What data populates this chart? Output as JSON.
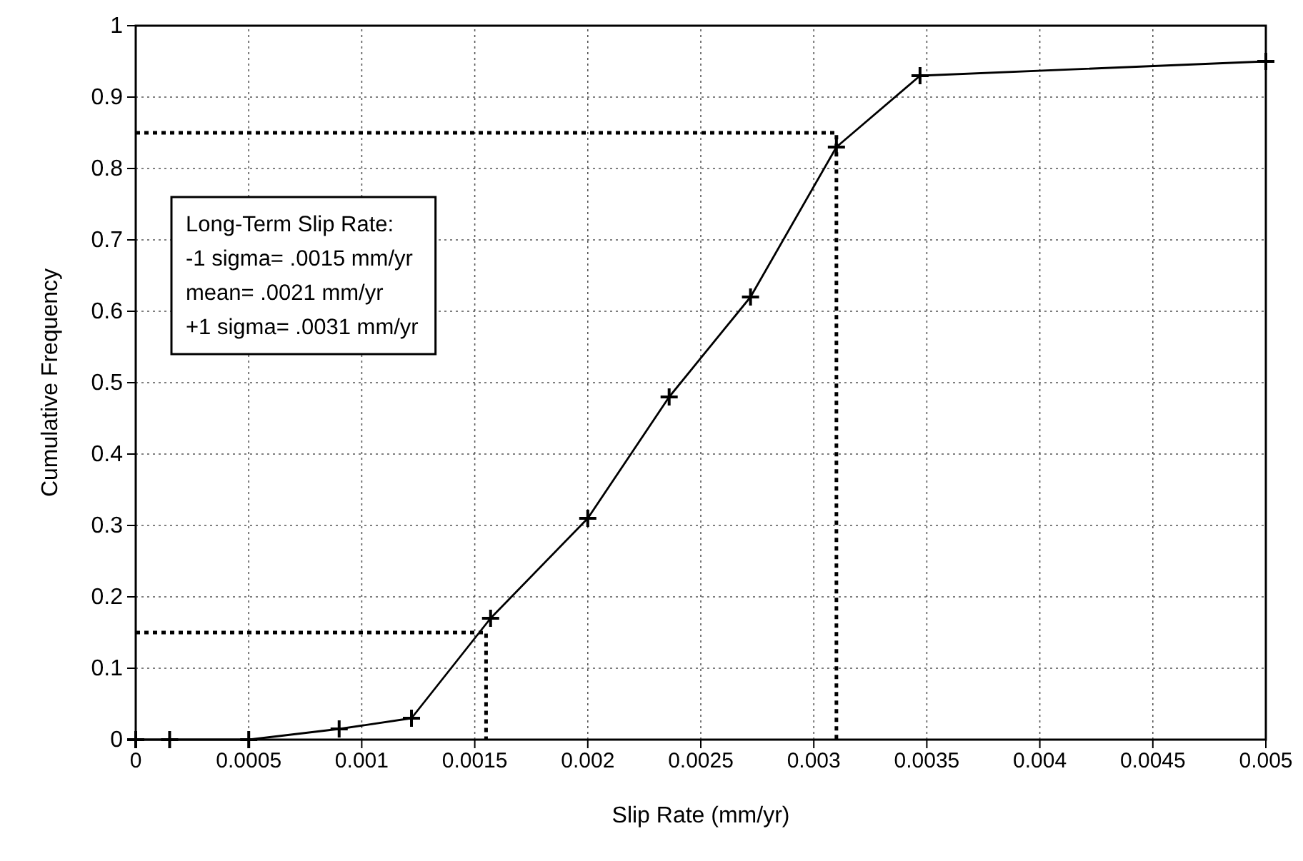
{
  "chart_data": {
    "type": "line",
    "xlabel": "Slip Rate (mm/yr)",
    "ylabel": "Cumulative Frequency",
    "xlim": [
      0,
      0.005
    ],
    "ylim": [
      0,
      1
    ],
    "xticks": [
      0,
      0.0005,
      0.001,
      0.0015,
      0.002,
      0.0025,
      0.003,
      0.0035,
      0.004,
      0.0045,
      0.005
    ],
    "yticks": [
      0,
      0.1,
      0.2,
      0.3,
      0.4,
      0.5,
      0.6,
      0.7,
      0.8,
      0.9,
      1
    ],
    "grid": true,
    "series": [
      {
        "color": "#000000",
        "marker": "cross",
        "line_style": "solid",
        "x": [
          0,
          0.00015,
          0.0005,
          0.0009,
          0.00122,
          0.00157,
          0.002,
          0.00236,
          0.00272,
          0.0031,
          0.00347,
          0.005
        ],
        "values": [
          0,
          0,
          0,
          0.015,
          0.03,
          0.17,
          0.31,
          0.48,
          0.62,
          0.83,
          0.93,
          0.95
        ]
      },
      {
        "color": "#000000",
        "marker": "none",
        "line_style": "dotted",
        "x": [
          0,
          0.00155,
          0.00155
        ],
        "values": [
          0.15,
          0.15,
          0
        ]
      },
      {
        "color": "#000000",
        "marker": "none",
        "line_style": "dotted",
        "x": [
          0,
          0.0031,
          0.0031
        ],
        "values": [
          0.85,
          0.85,
          0
        ]
      }
    ],
    "annotations": [
      "Long-Term Slip Rate:",
      "-1 sigma= .0015 mm/yr",
      "mean= .0021 mm/yr",
      "+1 sigma= .0031 mm/yr"
    ]
  }
}
